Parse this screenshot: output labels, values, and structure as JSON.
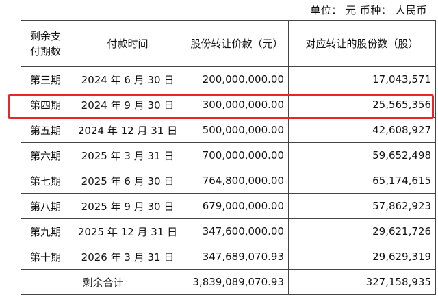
{
  "unit_line": "单位：  元  币种：  人民币",
  "headers": {
    "period": "剩余支\n付期数",
    "time": "付款时间",
    "price": "股份转让价款（元）",
    "shares": "对应转让的股份数（股）"
  },
  "rows": [
    {
      "period": "第三期",
      "time": "2024 年 6 月 30 日",
      "price": "200,000,000.00",
      "shares": "17,043,571"
    },
    {
      "period": "第四期",
      "time": "2024 年 9 月 30 日",
      "price": "300,000,000.00",
      "shares": "25,565,356"
    },
    {
      "period": "第五期",
      "time": "2024 年 12 月 31 日",
      "price": "500,000,000.00",
      "shares": "42,608,927"
    },
    {
      "period": "第六期",
      "time": "2025 年 3 月 31 日",
      "price": "700,000,000.00",
      "shares": "59,652,498"
    },
    {
      "period": "第七期",
      "time": "2025 年 6 月 30 日",
      "price": "764,800,000.00",
      "shares": "65,174,615"
    },
    {
      "period": "第八期",
      "time": "2025 年 9 月 30 日",
      "price": "679,000,000.00",
      "shares": "57,862,923"
    },
    {
      "period": "第九期",
      "time": "2025 年 12 月 31 日",
      "price": "347,600,000.00",
      "shares": "29,621,726"
    },
    {
      "period": "第十期",
      "time": "2026 年 3 月 31 日",
      "price": "347,689,070.93",
      "shares": "29,629,319"
    }
  ],
  "total": {
    "label": "剩余合计",
    "price": "3,839,089,070.93",
    "shares": "327,158,935"
  },
  "highlight_color": "#e8262a"
}
